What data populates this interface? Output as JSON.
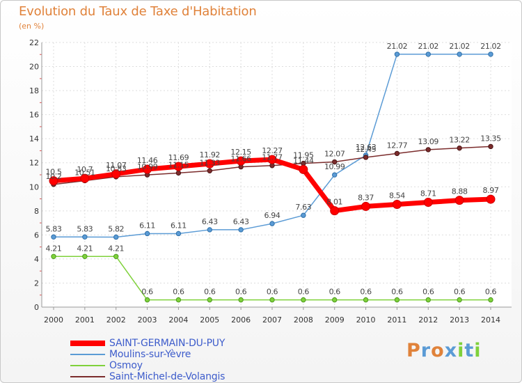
{
  "chart_data": {
    "type": "line",
    "title": "Evolution du Taux de Taxe d'Habitation",
    "subtitle": "(en %)",
    "x": [
      "2000",
      "2001",
      "2002",
      "2003",
      "2004",
      "2005",
      "2006",
      "2007",
      "2008",
      "2009",
      "2010",
      "2011",
      "2012",
      "2013",
      "2014"
    ],
    "ylim": [
      0,
      22
    ],
    "yticks": [
      0,
      2,
      4,
      6,
      8,
      10,
      12,
      14,
      16,
      18,
      20,
      22
    ],
    "grid": true,
    "legend_position": "bottom-left",
    "series": [
      {
        "name": "SAINT-GERMAIN-DU-PUY",
        "color": "#ff0000",
        "values": [
          10.5,
          10.7,
          11.07,
          11.46,
          11.69,
          11.92,
          12.15,
          12.27,
          11.44,
          8.01,
          8.37,
          8.54,
          8.71,
          8.88,
          8.97
        ],
        "labels": [
          "10.5",
          "10.7",
          "11.07",
          "11.46",
          "11.69",
          "11.92",
          "12.15",
          "12.27",
          "11.44",
          "8.01",
          "8.37",
          "8.54",
          "8.71",
          "8.88",
          "8.97"
        ]
      },
      {
        "name": "Moulins-sur-Yèvre",
        "color": "#5b9bd5",
        "values": [
          5.83,
          5.83,
          5.82,
          6.11,
          6.11,
          6.43,
          6.43,
          6.94,
          7.63,
          10.99,
          12.63,
          21.02,
          21.02,
          21.02,
          21.02
        ],
        "labels": [
          "5.83",
          "5.83",
          "5.82",
          "6.11",
          "6.11",
          "6.43",
          "6.43",
          "6.94",
          "7.63",
          "10.99",
          "12.63",
          "21.02",
          "21.02",
          "21.02",
          "21.02"
        ]
      },
      {
        "name": "Osmoy",
        "color": "#7fd13b",
        "values": [
          4.21,
          4.21,
          4.21,
          0.6,
          0.6,
          0.6,
          0.6,
          0.6,
          0.6,
          0.6,
          0.6,
          0.6,
          0.6,
          0.6,
          0.6
        ],
        "labels": [
          "4.21",
          "4.21",
          "4.21",
          "0.6",
          "0.6",
          "0.6",
          "0.6",
          "0.6",
          "0.6",
          "0.6",
          "0.6",
          "0.6",
          "0.6",
          "0.6",
          "0.6"
        ]
      },
      {
        "name": "Saint-Michel-de-Volangis",
        "color": "#7b2c2c",
        "values": [
          10.2,
          10.51,
          10.83,
          10.99,
          11.15,
          11.33,
          11.66,
          11.77,
          11.95,
          12.07,
          12.45,
          12.77,
          13.09,
          13.22,
          13.35
        ],
        "labels": [
          "10.2",
          "10.51",
          "10.83",
          "10.99",
          "11.15",
          "11.33",
          "11.66",
          "11.77",
          "11.95",
          "12.07",
          "12.45",
          "12.77",
          "13.09",
          "13.22",
          "13.35"
        ]
      }
    ]
  },
  "logo": {
    "text": "Proxiti",
    "colors": [
      "#e0823a",
      "#5b9bd5",
      "#e0823a",
      "#5b9bd5",
      "#7fd13b",
      "#5b9bd5",
      "#7fd13b"
    ]
  }
}
